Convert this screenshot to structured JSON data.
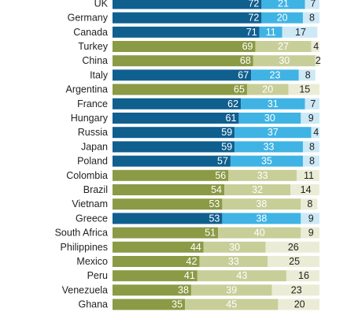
{
  "chart_data": {
    "type": "bar",
    "stacked": true,
    "orientation": "horizontal",
    "xlim": [
      0,
      100
    ],
    "categories": [
      "UK",
      "Germany",
      "Canada",
      "Turkey",
      "China",
      "Italy",
      "Argentina",
      "France",
      "Hungary",
      "Russia",
      "Japan",
      "Poland",
      "Colombia",
      "Brazil",
      "Vietnam",
      "Greece",
      "South Africa",
      "Philippines",
      "Mexico",
      "Peru",
      "Venezuela",
      "Ghana"
    ],
    "groups": [
      "blue",
      "blue",
      "blue",
      "olive",
      "olive",
      "blue",
      "olive",
      "blue",
      "blue",
      "blue",
      "blue",
      "blue",
      "olive",
      "olive",
      "olive",
      "blue",
      "olive",
      "olive",
      "olive",
      "olive",
      "olive",
      "olive"
    ],
    "series": [
      {
        "values": [
          72,
          72,
          71,
          69,
          68,
          67,
          65,
          62,
          61,
          59,
          59,
          57,
          56,
          54,
          53,
          53,
          51,
          44,
          42,
          41,
          38,
          35
        ]
      },
      {
        "values": [
          21,
          20,
          11,
          27,
          30,
          23,
          20,
          31,
          30,
          37,
          33,
          35,
          33,
          32,
          38,
          38,
          40,
          30,
          33,
          43,
          39,
          45
        ]
      },
      {
        "values": [
          7,
          8,
          17,
          4,
          2,
          8,
          15,
          7,
          9,
          4,
          8,
          8,
          11,
          14,
          8,
          9,
          9,
          26,
          25,
          16,
          23,
          20
        ]
      }
    ],
    "colors": {
      "blue": [
        "#0f5f8f",
        "#3fb3e4",
        "#cde9f6"
      ],
      "olive": [
        "#8b9a45",
        "#c8ce98",
        "#ebecd6"
      ],
      "label_light": "#ffffff",
      "label_dark": "#222222",
      "category_text": "#222222"
    }
  }
}
